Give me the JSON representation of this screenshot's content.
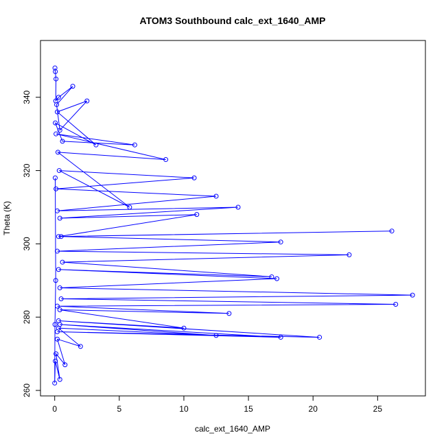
{
  "chart_data": {
    "type": "line",
    "title": "ATOM3 Southbound calc_ext_1640_AMP",
    "xlabel": "calc_ext_1640_AMP",
    "ylabel": "Theta (K)",
    "xlim": [
      -1.1,
      28.7
    ],
    "ylim": [
      258.5,
      355.5
    ],
    "xticks": [
      0,
      5,
      10,
      15,
      20,
      25
    ],
    "yticks": [
      260,
      280,
      300,
      320,
      340
    ],
    "grid": false,
    "series": [
      {
        "color": "#0000ff",
        "x": [
          0.02,
          0.05,
          0.1,
          0.08,
          0.3,
          1.4,
          0.15,
          0.4,
          2.5,
          0.2,
          3.2,
          0.05,
          0.6,
          6.2,
          0.1,
          8.6,
          0.25,
          5.8,
          0.35,
          10.8,
          0.1,
          12.5,
          0.2,
          14.2,
          0.4,
          11.0,
          0.3,
          26.1,
          0.5,
          17.5,
          0.2,
          22.8,
          0.6,
          16.8,
          0.3,
          17.2,
          0.4,
          27.7,
          0.5,
          26.4,
          0.2,
          13.5,
          0.4,
          10.0,
          0.3,
          20.5,
          0.2,
          17.5,
          0.4,
          12.5,
          0.3,
          2.0,
          0.2,
          0.8,
          0.1,
          0.4,
          0.05,
          0.0,
          0.02,
          0.08,
          0.04
        ],
        "y": [
          348,
          347,
          345,
          339,
          340,
          343,
          338,
          331,
          339,
          336,
          327,
          333,
          328,
          327,
          330,
          323,
          325,
          310,
          320,
          318,
          315,
          313,
          309,
          310,
          307,
          308,
          302,
          303.5,
          302,
          300.5,
          298,
          297,
          295,
          291,
          293,
          290.5,
          288,
          286,
          285,
          283.5,
          283,
          281,
          282,
          277,
          279,
          274.5,
          276,
          274.5,
          278,
          275,
          277,
          272,
          274,
          267,
          270,
          263,
          268,
          262,
          278,
          290,
          318
        ]
      }
    ]
  }
}
